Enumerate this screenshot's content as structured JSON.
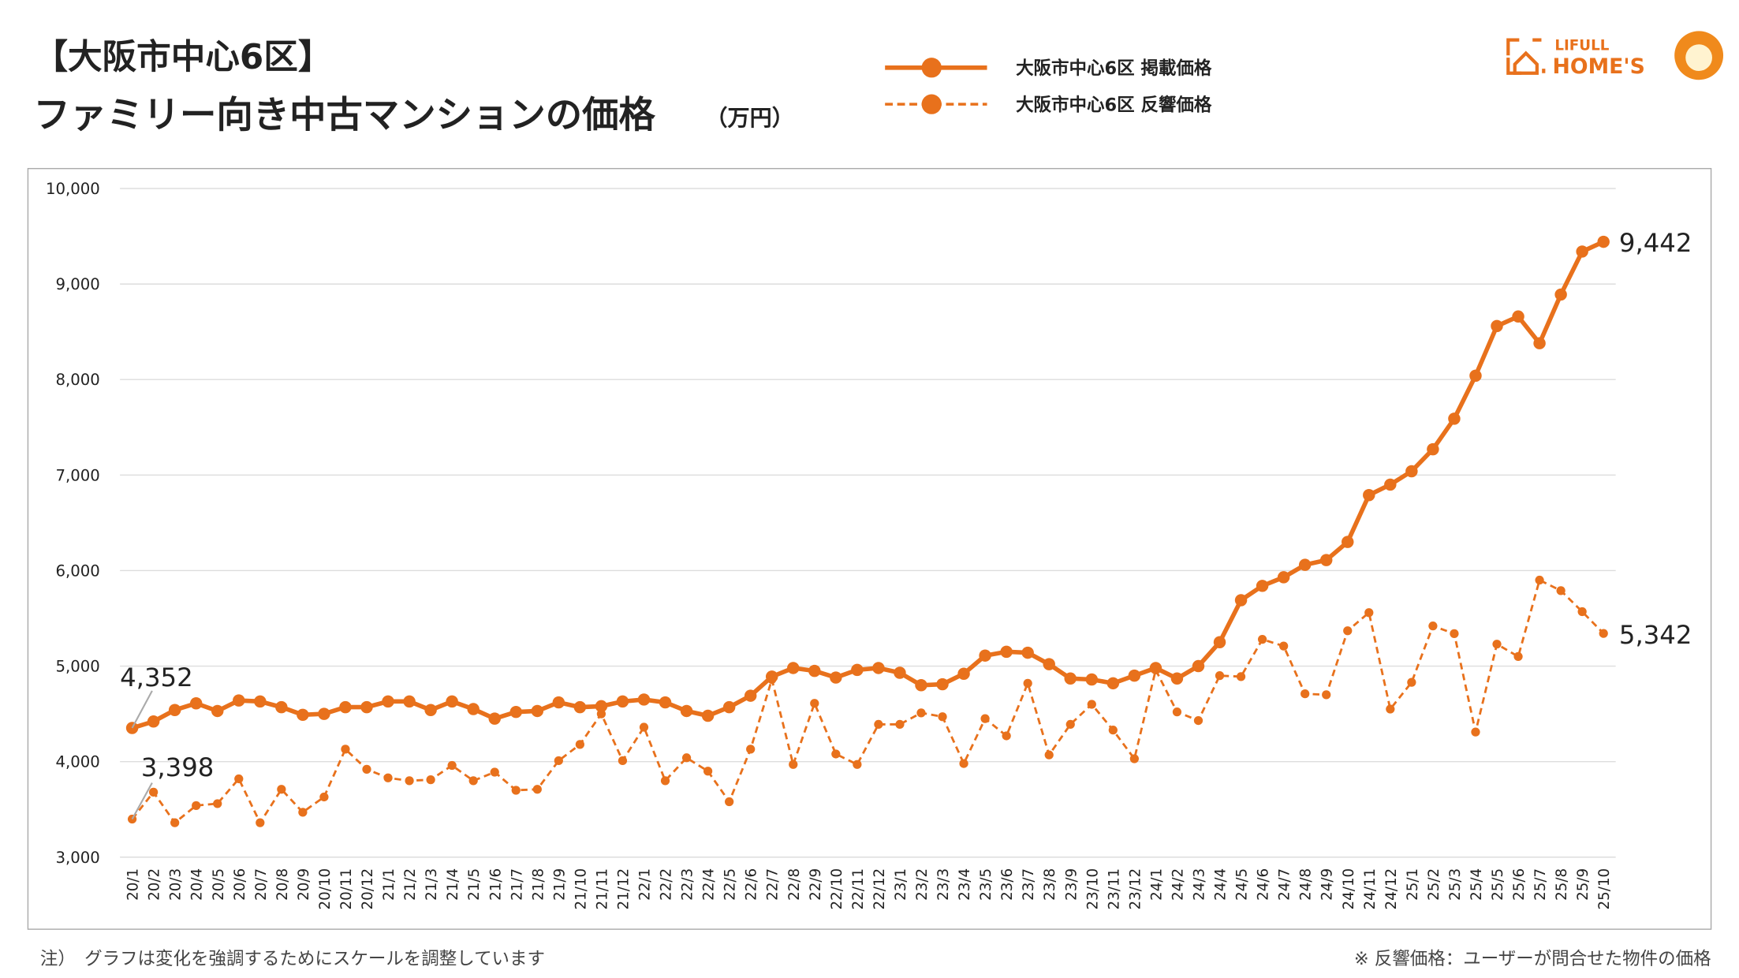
{
  "chart_data": {
    "type": "line",
    "title": "【大阪市中心6区】",
    "subtitle": "ファミリー向き中古マンションの価格",
    "unit": "（万円）",
    "note": "注）　グラフは変化を強調するためにスケールを調整しています",
    "footnote": "※ 反響価格：ユーザーが問合せた物件の価格",
    "logo": {
      "line1": "LIFULL",
      "line2": "HOME'S"
    },
    "categories": [
      "20/1",
      "20/2",
      "20/3",
      "20/4",
      "20/5",
      "20/6",
      "20/7",
      "20/8",
      "20/9",
      "20/10",
      "20/11",
      "20/12",
      "21/1",
      "21/2",
      "21/3",
      "21/4",
      "21/5",
      "21/6",
      "21/7",
      "21/8",
      "21/9",
      "21/10",
      "21/11",
      "21/12",
      "22/1",
      "22/2",
      "22/3",
      "22/4",
      "22/5",
      "22/6",
      "22/7",
      "22/8",
      "22/9",
      "22/10",
      "22/11",
      "22/12",
      "23/1",
      "23/2",
      "23/3",
      "23/4",
      "23/5",
      "23/6",
      "23/7",
      "23/8",
      "23/9",
      "23/10",
      "23/11",
      "23/12",
      "24/1",
      "24/2",
      "24/3",
      "24/4",
      "24/5",
      "24/6",
      "24/7",
      "24/8",
      "24/9",
      "24/10",
      "24/11",
      "24/12",
      "25/1",
      "25/2",
      "25/3",
      "25/4",
      "25/5",
      "25/6",
      "25/7",
      "25/8",
      "25/9",
      "25/10"
    ],
    "series": [
      {
        "name": "大阪市中心6区 掲載価格",
        "color": "#e8711c",
        "line_style": "solid",
        "values": [
          4352,
          4420,
          4540,
          4610,
          4530,
          4640,
          4630,
          4570,
          4490,
          4500,
          4570,
          4570,
          4630,
          4630,
          4540,
          4630,
          4550,
          4450,
          4520,
          4530,
          4620,
          4570,
          4580,
          4630,
          4650,
          4620,
          4530,
          4480,
          4570,
          4690,
          4890,
          4980,
          4950,
          4880,
          4960,
          4980,
          4930,
          4800,
          4810,
          4920,
          5110,
          5150,
          5140,
          5020,
          4870,
          4860,
          4820,
          4900,
          4980,
          4870,
          5000,
          5250,
          5690,
          5840,
          5930,
          6060,
          6110,
          6300,
          6790,
          6900,
          7040,
          7270,
          7590,
          8040,
          8560,
          8660,
          8380,
          8890,
          9340,
          9442
        ],
        "value_labels": [
          "4,352",
          null,
          null,
          null,
          null,
          null,
          null,
          null,
          null,
          null,
          null,
          null,
          null,
          null,
          null,
          null,
          null,
          null,
          null,
          null,
          null,
          null,
          null,
          null,
          null,
          null,
          null,
          null,
          null,
          null,
          null,
          null,
          null,
          null,
          null,
          null,
          null,
          null,
          null,
          null,
          null,
          null,
          null,
          null,
          null,
          null,
          null,
          null,
          null,
          null,
          null,
          null,
          null,
          null,
          null,
          null,
          null,
          null,
          null,
          null,
          null,
          null,
          null,
          null,
          null,
          null,
          null,
          null,
          null,
          "9,442"
        ]
      },
      {
        "name": "大阪市中心6区 反響価格",
        "color": "#e8711c",
        "line_style": "dashed",
        "values": [
          3398,
          3680,
          3360,
          3540,
          3560,
          3820,
          3360,
          3710,
          3470,
          3630,
          4130,
          3920,
          3830,
          3800,
          3810,
          3960,
          3800,
          3890,
          3700,
          3710,
          4010,
          4180,
          4500,
          4010,
          4360,
          3800,
          4040,
          3900,
          3580,
          4130,
          4860,
          3970,
          4610,
          4080,
          3970,
          4390,
          4390,
          4510,
          4470,
          3980,
          4450,
          4270,
          4820,
          4070,
          4390,
          4600,
          4330,
          4030,
          4960,
          4520,
          4430,
          4900,
          4890,
          5280,
          5210,
          4710,
          4700,
          5370,
          5560,
          4550,
          4830,
          5420,
          5340,
          4310,
          5230,
          5100,
          5900,
          5790,
          5570,
          5342
        ],
        "value_labels": [
          "3,398",
          null,
          null,
          null,
          null,
          null,
          null,
          null,
          null,
          null,
          null,
          null,
          null,
          null,
          null,
          null,
          null,
          null,
          null,
          null,
          null,
          null,
          null,
          null,
          null,
          null,
          null,
          null,
          null,
          null,
          null,
          null,
          null,
          null,
          null,
          null,
          null,
          null,
          null,
          null,
          null,
          null,
          null,
          null,
          null,
          null,
          null,
          null,
          null,
          null,
          null,
          null,
          null,
          null,
          null,
          null,
          null,
          null,
          null,
          null,
          null,
          null,
          null,
          null,
          null,
          null,
          null,
          null,
          null,
          "5,342"
        ]
      }
    ],
    "ylim": [
      3000,
      10000
    ],
    "yticks": [
      {
        "value": 3000,
        "label": "3,000"
      },
      {
        "value": 4000,
        "label": "4,000"
      },
      {
        "value": 5000,
        "label": "5,000"
      },
      {
        "value": 6000,
        "label": "6,000"
      },
      {
        "value": 7000,
        "label": "7,000"
      },
      {
        "value": 8000,
        "label": "8,000"
      },
      {
        "value": 9000,
        "label": "9,000"
      },
      {
        "value": 10000,
        "label": "10,000"
      }
    ],
    "grid": true
  }
}
